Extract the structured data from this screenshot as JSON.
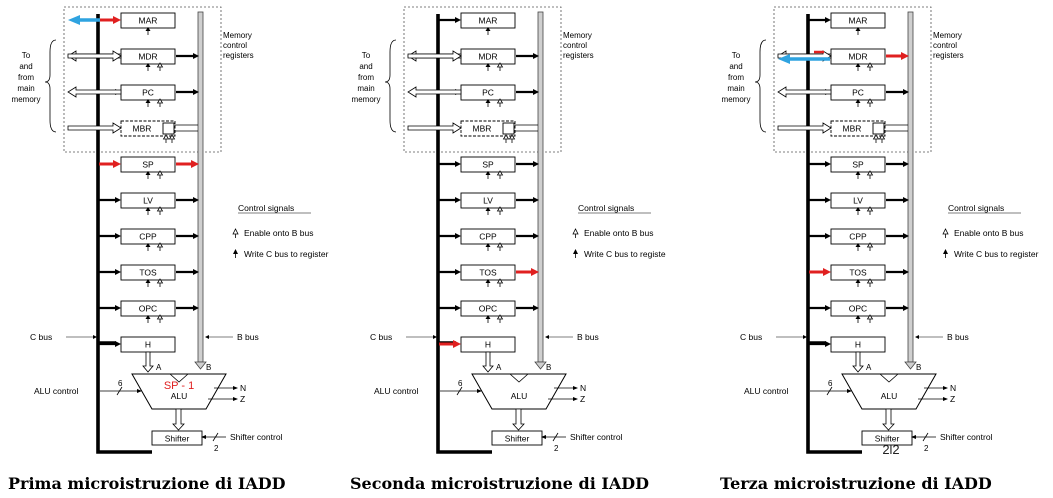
{
  "diagram": {
    "registers": [
      "MAR",
      "MDR",
      "PC",
      "MBR",
      "SP",
      "LV",
      "CPP",
      "TOS",
      "OPC",
      "H"
    ],
    "memory_group_label": [
      "To",
      "and",
      "from",
      "main",
      "memory"
    ],
    "memory_registers_label": [
      "Memory",
      "control",
      "registers"
    ],
    "control_signals_title": "Control signals",
    "legend_enable_b": "Enable onto B bus",
    "legend_write_c": "Write C bus to register",
    "c_bus_label": "C bus",
    "b_bus_label": "B bus",
    "alu_label": "ALU",
    "alu_control_label": "ALU control",
    "alu_control_width": "6",
    "alu_input_a": "A",
    "alu_input_b": "B",
    "alu_flag_n": "N",
    "alu_flag_z": "Z",
    "shifter_label": "Shifter",
    "shifter_control_label": "Shifter control",
    "shifter_control_width": "2",
    "highlight_color": "#e02020",
    "memory_arrow_color": "#2fa3e0"
  },
  "panels": [
    {
      "caption": "Prima microistruzione di IADD",
      "alu_annotation": "SP - 1",
      "shifter_annotation": "",
      "legend_write_c_text": "Write C bus to register",
      "highlight_write": [
        "MAR",
        "SP"
      ],
      "highlight_read": [
        "SP"
      ],
      "memory_arrow": "MAR"
    },
    {
      "caption": "Seconda microistruzione di IADD",
      "alu_annotation": "",
      "shifter_annotation": "",
      "legend_write_c_text": "Write C bus to registe",
      "highlight_write": [
        "H"
      ],
      "highlight_read": [
        "TOS"
      ],
      "memory_arrow": ""
    },
    {
      "caption": "Terza microistruzione di IADD",
      "alu_annotation": "",
      "shifter_annotation": "2l2",
      "legend_write_c_text": "Write C bus to register",
      "highlight_write": [
        "MDR",
        "TOS"
      ],
      "highlight_read": [
        "MDR"
      ],
      "memory_arrow": "MDR"
    }
  ]
}
